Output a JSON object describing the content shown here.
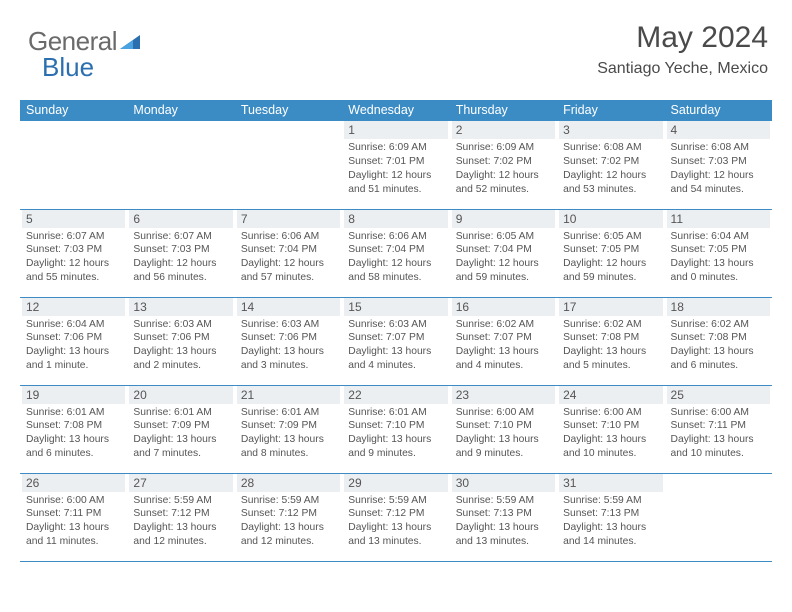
{
  "logo": {
    "part1": "General",
    "part2": "Blue"
  },
  "title": "May 2024",
  "location": "Santiago Yeche, Mexico",
  "colors": {
    "header_blue": "#3b8bc4",
    "row_divider": "#3b8bc4",
    "bg_daynum": "#eceff1",
    "text_dark": "#333333",
    "text_muted": "#555555",
    "bg_page": "#ffffff",
    "logo_main": "#6a6a6a",
    "logo_blue": "#2b6fb0"
  },
  "weekdays": [
    "Sunday",
    "Monday",
    "Tuesday",
    "Wednesday",
    "Thursday",
    "Friday",
    "Saturday"
  ],
  "grid": [
    [
      null,
      null,
      null,
      {
        "n": "1",
        "sunrise": "Sunrise: 6:09 AM",
        "sunset": "Sunset: 7:01 PM",
        "daylight": "Daylight: 12 hours and 51 minutes."
      },
      {
        "n": "2",
        "sunrise": "Sunrise: 6:09 AM",
        "sunset": "Sunset: 7:02 PM",
        "daylight": "Daylight: 12 hours and 52 minutes."
      },
      {
        "n": "3",
        "sunrise": "Sunrise: 6:08 AM",
        "sunset": "Sunset: 7:02 PM",
        "daylight": "Daylight: 12 hours and 53 minutes."
      },
      {
        "n": "4",
        "sunrise": "Sunrise: 6:08 AM",
        "sunset": "Sunset: 7:03 PM",
        "daylight": "Daylight: 12 hours and 54 minutes."
      }
    ],
    [
      {
        "n": "5",
        "sunrise": "Sunrise: 6:07 AM",
        "sunset": "Sunset: 7:03 PM",
        "daylight": "Daylight: 12 hours and 55 minutes."
      },
      {
        "n": "6",
        "sunrise": "Sunrise: 6:07 AM",
        "sunset": "Sunset: 7:03 PM",
        "daylight": "Daylight: 12 hours and 56 minutes."
      },
      {
        "n": "7",
        "sunrise": "Sunrise: 6:06 AM",
        "sunset": "Sunset: 7:04 PM",
        "daylight": "Daylight: 12 hours and 57 minutes."
      },
      {
        "n": "8",
        "sunrise": "Sunrise: 6:06 AM",
        "sunset": "Sunset: 7:04 PM",
        "daylight": "Daylight: 12 hours and 58 minutes."
      },
      {
        "n": "9",
        "sunrise": "Sunrise: 6:05 AM",
        "sunset": "Sunset: 7:04 PM",
        "daylight": "Daylight: 12 hours and 59 minutes."
      },
      {
        "n": "10",
        "sunrise": "Sunrise: 6:05 AM",
        "sunset": "Sunset: 7:05 PM",
        "daylight": "Daylight: 12 hours and 59 minutes."
      },
      {
        "n": "11",
        "sunrise": "Sunrise: 6:04 AM",
        "sunset": "Sunset: 7:05 PM",
        "daylight": "Daylight: 13 hours and 0 minutes."
      }
    ],
    [
      {
        "n": "12",
        "sunrise": "Sunrise: 6:04 AM",
        "sunset": "Sunset: 7:06 PM",
        "daylight": "Daylight: 13 hours and 1 minute."
      },
      {
        "n": "13",
        "sunrise": "Sunrise: 6:03 AM",
        "sunset": "Sunset: 7:06 PM",
        "daylight": "Daylight: 13 hours and 2 minutes."
      },
      {
        "n": "14",
        "sunrise": "Sunrise: 6:03 AM",
        "sunset": "Sunset: 7:06 PM",
        "daylight": "Daylight: 13 hours and 3 minutes."
      },
      {
        "n": "15",
        "sunrise": "Sunrise: 6:03 AM",
        "sunset": "Sunset: 7:07 PM",
        "daylight": "Daylight: 13 hours and 4 minutes."
      },
      {
        "n": "16",
        "sunrise": "Sunrise: 6:02 AM",
        "sunset": "Sunset: 7:07 PM",
        "daylight": "Daylight: 13 hours and 4 minutes."
      },
      {
        "n": "17",
        "sunrise": "Sunrise: 6:02 AM",
        "sunset": "Sunset: 7:08 PM",
        "daylight": "Daylight: 13 hours and 5 minutes."
      },
      {
        "n": "18",
        "sunrise": "Sunrise: 6:02 AM",
        "sunset": "Sunset: 7:08 PM",
        "daylight": "Daylight: 13 hours and 6 minutes."
      }
    ],
    [
      {
        "n": "19",
        "sunrise": "Sunrise: 6:01 AM",
        "sunset": "Sunset: 7:08 PM",
        "daylight": "Daylight: 13 hours and 6 minutes."
      },
      {
        "n": "20",
        "sunrise": "Sunrise: 6:01 AM",
        "sunset": "Sunset: 7:09 PM",
        "daylight": "Daylight: 13 hours and 7 minutes."
      },
      {
        "n": "21",
        "sunrise": "Sunrise: 6:01 AM",
        "sunset": "Sunset: 7:09 PM",
        "daylight": "Daylight: 13 hours and 8 minutes."
      },
      {
        "n": "22",
        "sunrise": "Sunrise: 6:01 AM",
        "sunset": "Sunset: 7:10 PM",
        "daylight": "Daylight: 13 hours and 9 minutes."
      },
      {
        "n": "23",
        "sunrise": "Sunrise: 6:00 AM",
        "sunset": "Sunset: 7:10 PM",
        "daylight": "Daylight: 13 hours and 9 minutes."
      },
      {
        "n": "24",
        "sunrise": "Sunrise: 6:00 AM",
        "sunset": "Sunset: 7:10 PM",
        "daylight": "Daylight: 13 hours and 10 minutes."
      },
      {
        "n": "25",
        "sunrise": "Sunrise: 6:00 AM",
        "sunset": "Sunset: 7:11 PM",
        "daylight": "Daylight: 13 hours and 10 minutes."
      }
    ],
    [
      {
        "n": "26",
        "sunrise": "Sunrise: 6:00 AM",
        "sunset": "Sunset: 7:11 PM",
        "daylight": "Daylight: 13 hours and 11 minutes."
      },
      {
        "n": "27",
        "sunrise": "Sunrise: 5:59 AM",
        "sunset": "Sunset: 7:12 PM",
        "daylight": "Daylight: 13 hours and 12 minutes."
      },
      {
        "n": "28",
        "sunrise": "Sunrise: 5:59 AM",
        "sunset": "Sunset: 7:12 PM",
        "daylight": "Daylight: 13 hours and 12 minutes."
      },
      {
        "n": "29",
        "sunrise": "Sunrise: 5:59 AM",
        "sunset": "Sunset: 7:12 PM",
        "daylight": "Daylight: 13 hours and 13 minutes."
      },
      {
        "n": "30",
        "sunrise": "Sunrise: 5:59 AM",
        "sunset": "Sunset: 7:13 PM",
        "daylight": "Daylight: 13 hours and 13 minutes."
      },
      {
        "n": "31",
        "sunrise": "Sunrise: 5:59 AM",
        "sunset": "Sunset: 7:13 PM",
        "daylight": "Daylight: 13 hours and 14 minutes."
      },
      null
    ]
  ]
}
